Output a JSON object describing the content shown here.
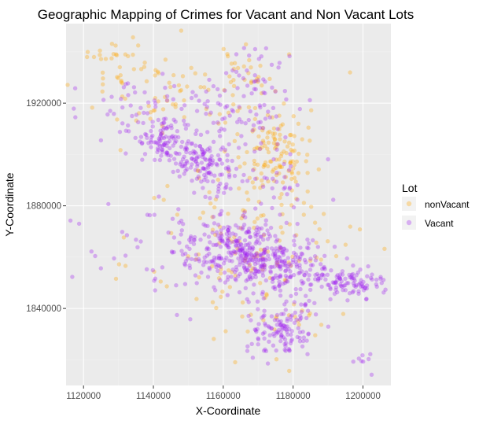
{
  "chart_data": {
    "type": "scatter",
    "title": "Geographic Mapping of Crimes for Vacant and Non Vacant Lots",
    "xlabel": "X-Coordinate",
    "ylabel": "Y-Coordinate",
    "xlim": [
      1115000,
      1208000
    ],
    "ylim": [
      1810000,
      1951000
    ],
    "x_ticks": [
      1120000,
      1140000,
      1160000,
      1180000,
      1200000
    ],
    "x_tick_labels": [
      "1120000",
      "1140000",
      "1160000",
      "1180000",
      "1200000"
    ],
    "y_ticks": [
      1840000,
      1880000,
      1920000
    ],
    "y_tick_labels": [
      "1840000",
      "1880000",
      "1920000"
    ],
    "grid": true,
    "legend": {
      "title": "Lot",
      "position": "right"
    },
    "series": [
      {
        "name": "nonVacant",
        "color": "#FFA500",
        "clusters": [
          {
            "cx": 1175000,
            "cy": 1902000,
            "sx": 5000,
            "sy": 9000,
            "n": 110
          },
          {
            "cx": 1148000,
            "cy": 1925000,
            "sx": 15000,
            "sy": 9000,
            "n": 80
          },
          {
            "cx": 1130000,
            "cy": 1938000,
            "sx": 6000,
            "sy": 5000,
            "n": 25
          },
          {
            "cx": 1170000,
            "cy": 1882000,
            "sx": 12000,
            "sy": 10000,
            "n": 60
          },
          {
            "cx": 1168000,
            "cy": 1860000,
            "sx": 15000,
            "sy": 10000,
            "n": 70
          },
          {
            "cx": 1172000,
            "cy": 1835000,
            "sx": 12000,
            "sy": 9000,
            "n": 30
          },
          {
            "cx": 1166000,
            "cy": 1935000,
            "sx": 4000,
            "sy": 7000,
            "n": 20
          }
        ]
      },
      {
        "name": "Vacant",
        "color": "#A020F0",
        "clusters": [
          {
            "cx": 1143000,
            "cy": 1905000,
            "sx": 4000,
            "sy": 4000,
            "n": 70
          },
          {
            "cx": 1152000,
            "cy": 1898000,
            "sx": 4000,
            "sy": 4000,
            "n": 90
          },
          {
            "cx": 1160000,
            "cy": 1893000,
            "sx": 5000,
            "sy": 5000,
            "n": 50
          },
          {
            "cx": 1150000,
            "cy": 1915000,
            "sx": 12000,
            "sy": 7000,
            "n": 80
          },
          {
            "cx": 1167000,
            "cy": 1862000,
            "sx": 6000,
            "sy": 6000,
            "n": 260
          },
          {
            "cx": 1180000,
            "cy": 1855000,
            "sx": 6000,
            "sy": 5000,
            "n": 140
          },
          {
            "cx": 1196000,
            "cy": 1850000,
            "sx": 5000,
            "sy": 3000,
            "n": 90
          },
          {
            "cx": 1177000,
            "cy": 1833000,
            "sx": 5000,
            "sy": 6000,
            "n": 130
          },
          {
            "cx": 1154000,
            "cy": 1860000,
            "sx": 7000,
            "sy": 8000,
            "n": 60
          },
          {
            "cx": 1140000,
            "cy": 1865000,
            "sx": 12000,
            "sy": 9000,
            "n": 40
          },
          {
            "cx": 1170000,
            "cy": 1925000,
            "sx": 6000,
            "sy": 10000,
            "n": 60
          },
          {
            "cx": 1178000,
            "cy": 1888000,
            "sx": 5000,
            "sy": 7000,
            "n": 30
          },
          {
            "cx": 1135000,
            "cy": 1915000,
            "sx": 9000,
            "sy": 6000,
            "n": 30
          },
          {
            "cx": 1200000,
            "cy": 1820000,
            "sx": 2000,
            "sy": 3000,
            "n": 8
          }
        ]
      }
    ]
  }
}
